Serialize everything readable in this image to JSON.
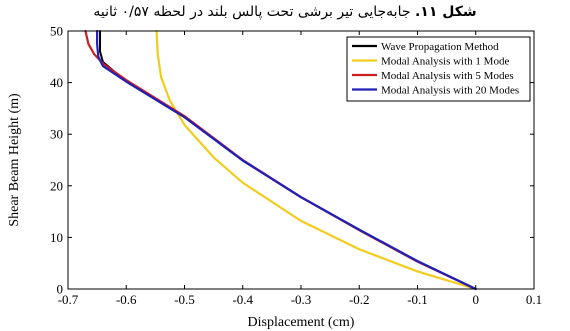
{
  "caption": {
    "label": "شکل ۱۱.",
    "text": "جابه‌جایی تیر برشی تحت پالس بلند در لحظه ۰/۵۷ ثانیه"
  },
  "chart_data": {
    "type": "line",
    "xlabel": "Displacement (cm)",
    "ylabel": "Shear Beam Height (m)",
    "xlim": [
      -0.7,
      0.1
    ],
    "ylim": [
      0,
      50
    ],
    "x_ticks": [
      "-0.7",
      "-0.6",
      "-0.5",
      "-0.4",
      "-0.3",
      "-0.2",
      "-0.1",
      "0",
      "0.1"
    ],
    "y_ticks": [
      "0",
      "10",
      "20",
      "30",
      "40",
      "50"
    ],
    "grid": false,
    "legend_position": "top-right",
    "series": [
      {
        "name": "Wave Propagation Method",
        "color": "#000000",
        "x": [
          0,
          -0.1,
          -0.2,
          -0.3,
          -0.4,
          -0.5,
          -0.6,
          -0.64,
          -0.645,
          -0.645
        ],
        "y": [
          0,
          5.4,
          11.5,
          17.8,
          24.9,
          33.3,
          40.2,
          44,
          46,
          50
        ]
      },
      {
        "name": "Modal Analysis with 1 Mode",
        "color": "#f2cc1c",
        "x": [
          0,
          -0.1,
          -0.2,
          -0.3,
          -0.4,
          -0.45,
          -0.5,
          -0.525,
          -0.54,
          -0.546,
          -0.548
        ],
        "y": [
          0,
          3.4,
          7.7,
          13.2,
          20.6,
          25.5,
          31.8,
          36.5,
          41,
          45.5,
          50
        ]
      },
      {
        "name": "Modal Analysis with 5 Modes",
        "color": "#cc1f1f",
        "x": [
          0,
          -0.1,
          -0.2,
          -0.3,
          -0.4,
          -0.5,
          -0.6,
          -0.638,
          -0.655,
          -0.665,
          -0.67
        ],
        "y": [
          0,
          5.3,
          11.4,
          17.8,
          25,
          33.5,
          40.5,
          43.5,
          45.5,
          47.5,
          50
        ]
      },
      {
        "name": "Modal Analysis with 20 Modes",
        "color": "#2020b8",
        "x": [
          0,
          -0.1,
          -0.2,
          -0.3,
          -0.4,
          -0.5,
          -0.6,
          -0.64,
          -0.648,
          -0.65,
          -0.65
        ],
        "y": [
          0,
          5.4,
          11.5,
          17.8,
          24.9,
          33.3,
          40.2,
          43.2,
          45,
          47.5,
          50
        ]
      }
    ]
  }
}
